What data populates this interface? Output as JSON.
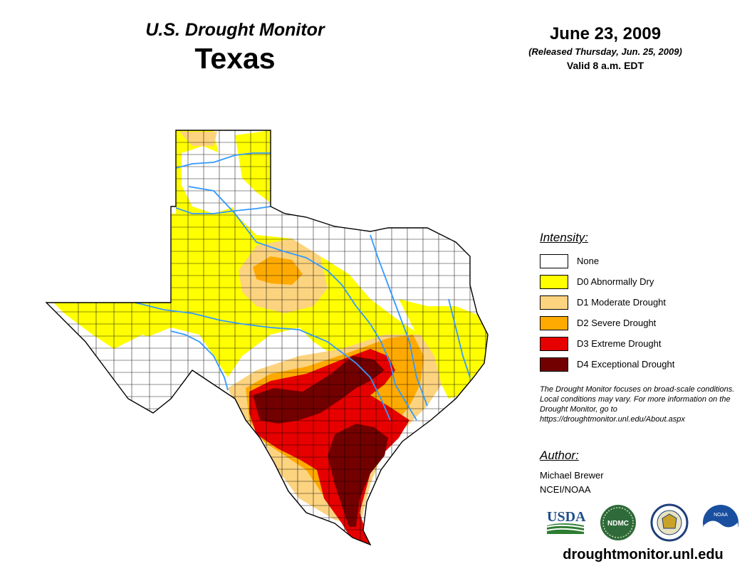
{
  "header": {
    "product": "U.S. Drought Monitor",
    "region": "Texas",
    "date": "June 23, 2009",
    "released": "(Released Thursday, Jun. 25, 2009)",
    "valid": "Valid 8 a.m. EDT"
  },
  "legend": {
    "title": "Intensity:",
    "items": [
      {
        "label": "None",
        "color": "#ffffff"
      },
      {
        "label": "D0 Abnormally Dry",
        "color": "#ffff00"
      },
      {
        "label": "D1 Moderate Drought",
        "color": "#fcd37f"
      },
      {
        "label": "D2 Severe Drought",
        "color": "#ffaa00"
      },
      {
        "label": "D3 Extreme Drought",
        "color": "#e60000"
      },
      {
        "label": "D4 Exceptional Drought",
        "color": "#730000"
      }
    ]
  },
  "note": "The Drought Monitor focuses on broad-scale conditions. Local conditions may vary. For more information on the Drought Monitor, go to https://droughtmonitor.unl.edu/About.aspx",
  "author": {
    "title": "Author:",
    "name": "Michael Brewer",
    "org": "NCEI/NOAA"
  },
  "logos": {
    "usda": "USDA",
    "ndmc": "NDMC",
    "noaa": "NOAA",
    "icons": [
      "usda-logo-icon",
      "ndmc-logo-icon",
      "doc-seal-icon",
      "noaa-logo-icon"
    ]
  },
  "footer": {
    "url": "droughtmonitor.unl.edu"
  },
  "colors": {
    "river": "#3399ff",
    "county_line": "#000000"
  }
}
